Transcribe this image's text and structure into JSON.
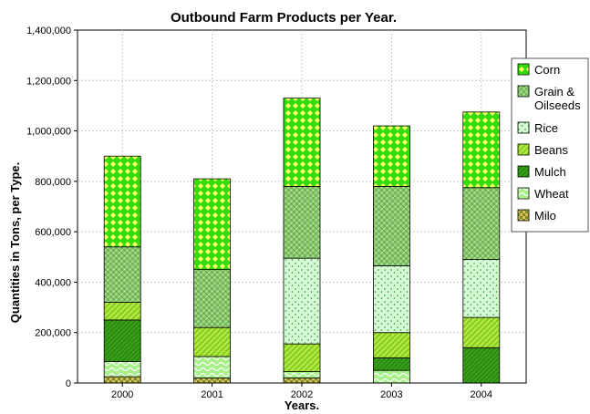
{
  "chart_data": {
    "type": "bar",
    "stacked": true,
    "title": "Outbound Farm Products per Year.",
    "xlabel": "Years.",
    "ylabel": "Quantities in Tons, per Type.",
    "categories": [
      "2000",
      "2001",
      "2002",
      "2003",
      "2004"
    ],
    "ylim": [
      0,
      1400000
    ],
    "yticks": [
      0,
      200000,
      400000,
      600000,
      800000,
      1000000,
      1200000,
      1400000
    ],
    "ytick_labels": [
      "0",
      "200,000",
      "400,000",
      "600,000",
      "800,000",
      "1,000,000",
      "1,200,000",
      "1,400,000"
    ],
    "grid": true,
    "legend_position": "right",
    "series": [
      {
        "name": "Milo",
        "values": [
          25000,
          20000,
          20000,
          0,
          0
        ],
        "color": "#7a8a1e",
        "pattern": "checker"
      },
      {
        "name": "Wheat",
        "values": [
          60000,
          85000,
          25000,
          50000,
          0
        ],
        "color": "#a8f08a",
        "pattern": "waves"
      },
      {
        "name": "Mulch",
        "values": [
          165000,
          0,
          0,
          50000,
          140000
        ],
        "color": "#3aa01a",
        "pattern": "diag-dense"
      },
      {
        "name": "Beans",
        "values": [
          70000,
          115000,
          110000,
          100000,
          120000
        ],
        "color": "#8ad21e",
        "pattern": "diag"
      },
      {
        "name": "Rice",
        "values": [
          0,
          0,
          340000,
          265000,
          230000
        ],
        "color": "#d4fbd4",
        "pattern": "dots"
      },
      {
        "name": "Grain & Oilseeds",
        "values": [
          220000,
          230000,
          285000,
          315000,
          285000
        ],
        "color": "#84c46a",
        "pattern": "cross"
      },
      {
        "name": "Corn",
        "values": [
          360000,
          360000,
          350000,
          240000,
          300000
        ],
        "color": "#33dd10",
        "pattern": "diamonds"
      }
    ],
    "legend_order": [
      "Corn",
      "Grain & Oilseeds",
      "Rice",
      "Beans",
      "Mulch",
      "Wheat",
      "Milo"
    ]
  }
}
